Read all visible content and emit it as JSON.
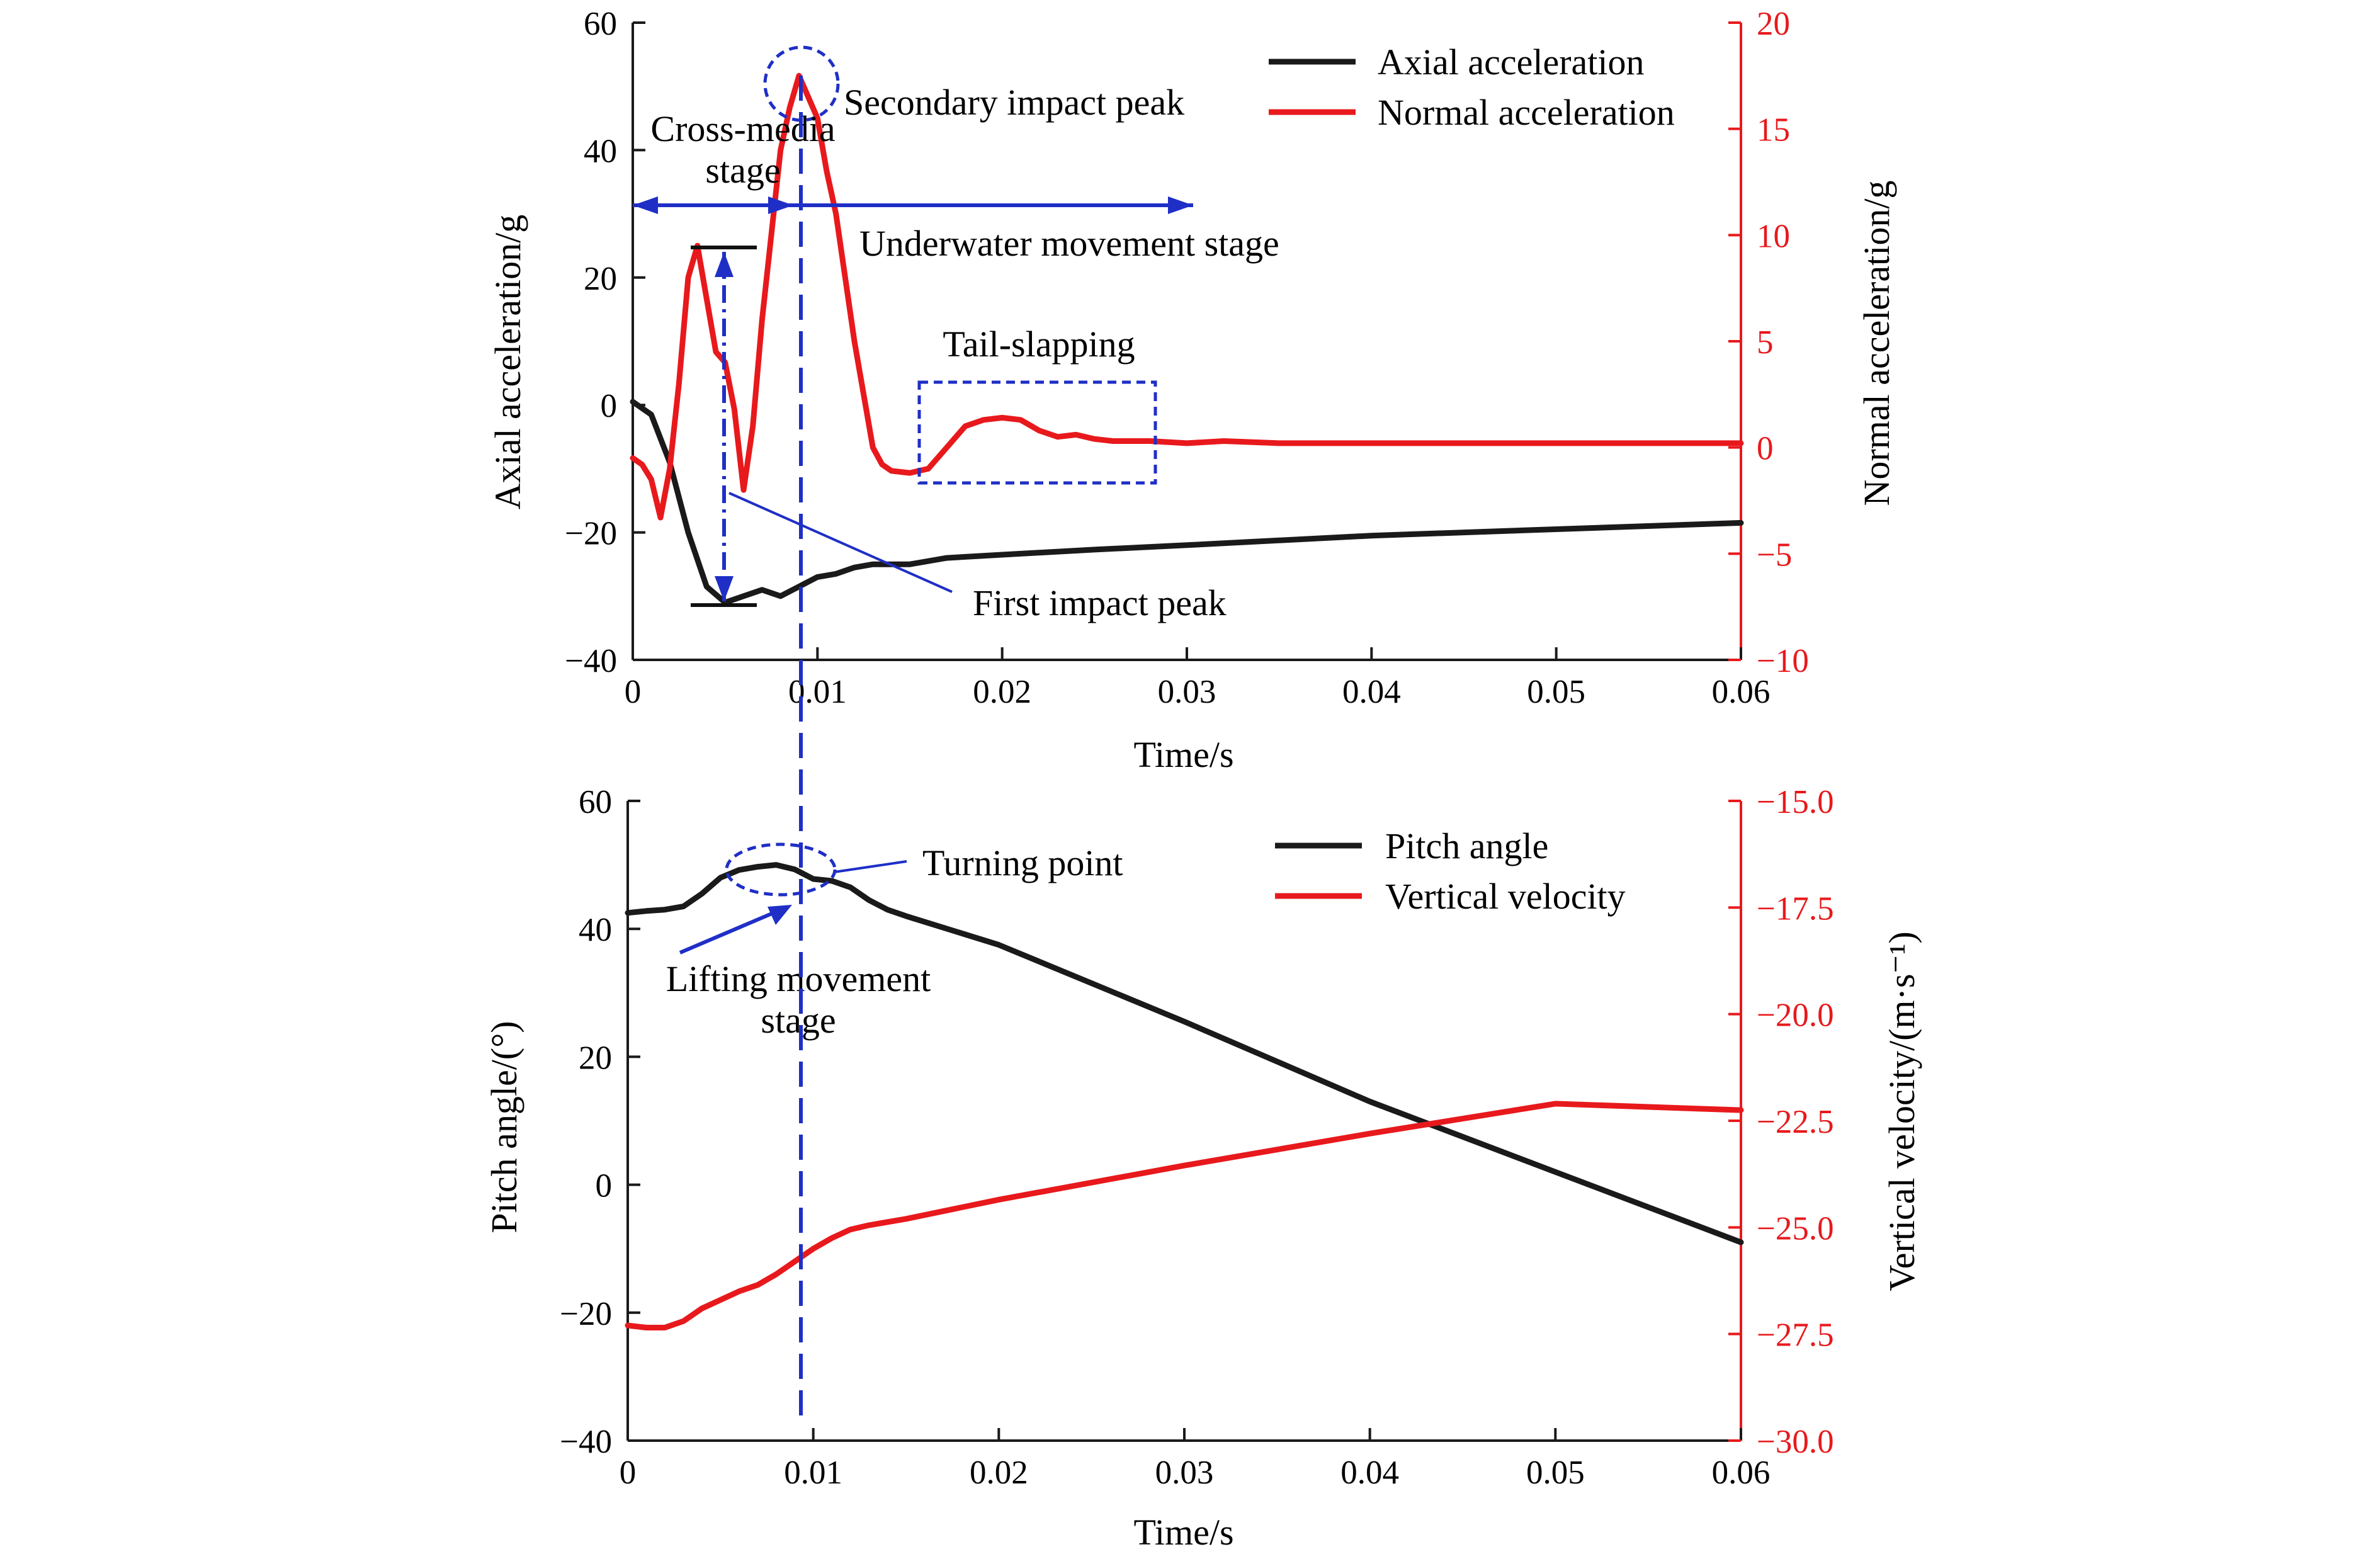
{
  "chart_data": [
    {
      "type": "line",
      "xlabel": "Time/s",
      "ylabel": "Axial acceleration/g",
      "y2label": "Normal acceleration/g",
      "xlim": [
        0,
        0.06
      ],
      "ylim": [
        -40,
        60
      ],
      "y2lim": [
        -10,
        20
      ],
      "xticks": [
        "0",
        "0.01",
        "0.02",
        "0.03",
        "0.04",
        "0.05",
        "0.06"
      ],
      "yticks": [
        "60",
        "40",
        "20",
        "0",
        "−20",
        "−40"
      ],
      "y2ticks": [
        "20",
        "15",
        "10",
        "5",
        "0",
        "−5",
        "−10"
      ],
      "grid": false,
      "legend_position": "top-right",
      "series": [
        {
          "name": "Axial acceleration",
          "axis": "left",
          "color": "#1a1a1a",
          "x": [
            0,
            0.001,
            0.002,
            0.003,
            0.004,
            0.005,
            0.006,
            0.007,
            0.008,
            0.009,
            0.01,
            0.011,
            0.012,
            0.013,
            0.015,
            0.017,
            0.02,
            0.025,
            0.03,
            0.04,
            0.05,
            0.06
          ],
          "y": [
            0.5,
            -1.5,
            -9,
            -20,
            -28.5,
            -31,
            -30,
            -29,
            -30,
            -28.5,
            -27,
            -26.5,
            -25.5,
            -25,
            -25,
            -24,
            -23.5,
            -22.7,
            -22,
            -20.5,
            -19.5,
            -18.5
          ]
        },
        {
          "name": "Normal acceleration",
          "axis": "right",
          "color": "#e8191c",
          "x": [
            0,
            0.0005,
            0.001,
            0.0015,
            0.002,
            0.0025,
            0.003,
            0.0035,
            0.004,
            0.0045,
            0.005,
            0.0055,
            0.006,
            0.0065,
            0.007,
            0.0075,
            0.008,
            0.0085,
            0.009,
            0.0095,
            0.01,
            0.0105,
            0.011,
            0.012,
            0.013,
            0.0135,
            0.014,
            0.015,
            0.016,
            0.017,
            0.018,
            0.019,
            0.02,
            0.021,
            0.022,
            0.023,
            0.024,
            0.025,
            0.026,
            0.027,
            0.028,
            0.03,
            0.032,
            0.035,
            0.04,
            0.05,
            0.06
          ],
          "y": [
            -0.5,
            -0.8,
            -1.5,
            -3.3,
            -1,
            3,
            8,
            9.5,
            7,
            4.5,
            4,
            1.8,
            -2,
            1,
            6,
            10,
            14,
            16,
            17.5,
            16.5,
            15.5,
            13,
            11,
            5,
            0,
            -0.8,
            -1.1,
            -1.2,
            -1,
            0,
            1,
            1.3,
            1.4,
            1.3,
            0.8,
            0.5,
            0.6,
            0.4,
            0.3,
            0.3,
            0.3,
            0.2,
            0.3,
            0.2,
            0.2,
            0.2,
            0.2
          ]
        }
      ],
      "annotations": {
        "cross_media": [
          "Cross-media",
          "stage"
        ],
        "secondary_peak": "Secondary impact peak",
        "underwater": "Underwater movement stage",
        "tail_slapping": "Tail-slapping",
        "first_peak": "First impact peak"
      }
    },
    {
      "type": "line",
      "xlabel": "Time/s",
      "ylabel": "Pitch angle/(°)",
      "y2label": "Vertical velocity/(m·s⁻¹)",
      "xlim": [
        0,
        0.06
      ],
      "ylim": [
        -40,
        60
      ],
      "y2lim": [
        -30,
        -15
      ],
      "xticks": [
        "0",
        "0.01",
        "0.02",
        "0.03",
        "0.04",
        "0.05",
        "0.06"
      ],
      "yticks": [
        "60",
        "40",
        "20",
        "0",
        "−20",
        "−40"
      ],
      "y2ticks": [
        "−15.0",
        "−17.5",
        "−20.0",
        "−22.5",
        "−25.0",
        "−27.5",
        "−30.0"
      ],
      "grid": false,
      "legend_position": "top-right",
      "series": [
        {
          "name": "Pitch angle",
          "axis": "left",
          "color": "#1a1a1a",
          "x": [
            0,
            0.001,
            0.002,
            0.003,
            0.004,
            0.005,
            0.006,
            0.007,
            0.008,
            0.009,
            0.01,
            0.011,
            0.012,
            0.013,
            0.014,
            0.015,
            0.02,
            0.03,
            0.04,
            0.05,
            0.06
          ],
          "y": [
            42.5,
            42.8,
            43,
            43.5,
            45.5,
            48,
            49.2,
            49.7,
            50,
            49.3,
            47.8,
            47.5,
            46.5,
            44.5,
            43,
            42,
            37.5,
            25.5,
            13,
            2,
            -9
          ]
        },
        {
          "name": "Vertical velocity",
          "axis": "right",
          "color": "#e8191c",
          "x": [
            0,
            0.001,
            0.002,
            0.003,
            0.004,
            0.005,
            0.006,
            0.007,
            0.008,
            0.009,
            0.01,
            0.011,
            0.012,
            0.013,
            0.015,
            0.02,
            0.03,
            0.04,
            0.05,
            0.06
          ],
          "y": [
            -27.3,
            -27.35,
            -27.35,
            -27.2,
            -26.9,
            -26.7,
            -26.5,
            -26.35,
            -26.1,
            -25.8,
            -25.5,
            -25.25,
            -25.05,
            -24.95,
            -24.8,
            -24.35,
            -23.55,
            -22.8,
            -22.1,
            -22.25
          ]
        }
      ],
      "annotations": {
        "turning_point": "Turning point",
        "lifting": [
          "Lifting movement",
          "stage"
        ]
      }
    }
  ]
}
